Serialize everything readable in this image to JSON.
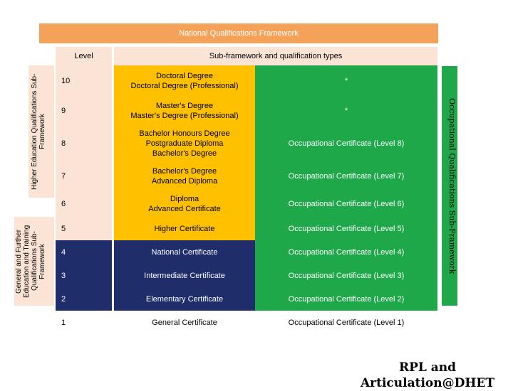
{
  "title": "National Qualifications Framework",
  "headers": {
    "level": "Level",
    "types": "Sub-framework and qualification types"
  },
  "side_labels": {
    "higher": "Higher Education Qualifications Sub-Framework",
    "general": "General and Further Education and Training Qualifications Sub-Framework",
    "occupational": "Occupational Qualifications Sub-Framework"
  },
  "rows": [
    {
      "level": "10",
      "qual": [
        "Doctoral Degree",
        "Doctoral Degree (Professional)"
      ],
      "occ": "*",
      "band": "higher"
    },
    {
      "level": "9",
      "qual": [
        "Master's Degree",
        "Master's Degree (Professional)"
      ],
      "occ": "*",
      "band": "higher"
    },
    {
      "level": "8",
      "qual": [
        "Bachelor Honours Degree",
        "Postgraduate Diploma",
        "Bachelor's Degree"
      ],
      "occ": "Occupational Certificate (Level 8)",
      "band": "higher"
    },
    {
      "level": "7",
      "qual": [
        "Bachelor's Degree",
        "Advanced Diploma"
      ],
      "occ": "Occupational Certificate (Level 7)",
      "band": "higher"
    },
    {
      "level": "6",
      "qual": [
        "Diploma",
        "Advanced Certificate"
      ],
      "occ": "Occupational Certificate (Level 6)",
      "band": "higher"
    },
    {
      "level": "5",
      "qual": [
        "Higher Certificate"
      ],
      "occ": "Occupational Certificate (Level 5)",
      "band": "higher"
    },
    {
      "level": "4",
      "qual": [
        "National Certificate"
      ],
      "occ": "Occupational Certificate (Level 4)",
      "band": "general"
    },
    {
      "level": "3",
      "qual": [
        "Intermediate Certificate"
      ],
      "occ": "Occupational Certificate (Level 3)",
      "band": "general"
    },
    {
      "level": "2",
      "qual": [
        "Elementary Certificate"
      ],
      "occ": "Occupational Certificate (Level 2)",
      "band": "general"
    },
    {
      "level": "1",
      "qual": [
        "General Certificate"
      ],
      "occ": "Occupational Certificate (Level 1)",
      "band": "general"
    }
  ],
  "footer": [
    "RPL and",
    "Articulation@DHET"
  ],
  "colors": {
    "title_bg": "#f4a259",
    "header_bg": "#fbe3d6",
    "higher": "#ffc000",
    "general": "#1f2d6b",
    "occupational": "#1fa84a",
    "level_bg_light": "#fbe3d6"
  }
}
